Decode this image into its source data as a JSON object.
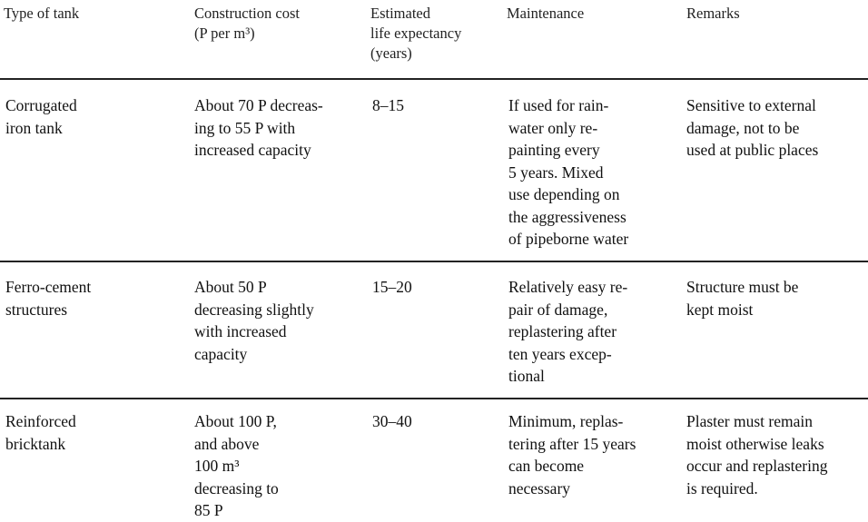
{
  "table": {
    "headers": [
      "Type of tank",
      "Construction cost\n(P per m³)",
      "Estimated\nlife expectancy\n(years)",
      "Maintenance",
      "Remarks"
    ],
    "rows": [
      {
        "type": "Corrugated\niron tank",
        "cost": "About 70 P decreas-\ning to 55 P with\nincreased capacity",
        "life": "8–15",
        "maintenance": "If used for rain-\nwater only re-\npainting every\n5 years. Mixed\nuse depending on\nthe aggressiveness\nof pipeborne water",
        "remarks": "Sensitive to external\ndamage, not to be\nused at public places"
      },
      {
        "type": "Ferro-cement\nstructures",
        "cost": "About 50 P\ndecreasing slightly\nwith increased\ncapacity",
        "life": "15–20",
        "maintenance": "Relatively easy re-\npair of damage,\nreplastering after\nten years excep-\ntional",
        "remarks": "Structure must be\nkept moist"
      },
      {
        "type": "Reinforced\nbricktank",
        "cost": "About 100 P,\nand above\n100 m³\ndecreasing to\n85 P",
        "life": "30–40",
        "maintenance": "Minimum, replas-\ntering after 15 years\ncan become\nnecessary",
        "remarks": "Plaster must remain\nmoist otherwise leaks\noccur and replastering\nis required."
      }
    ]
  }
}
